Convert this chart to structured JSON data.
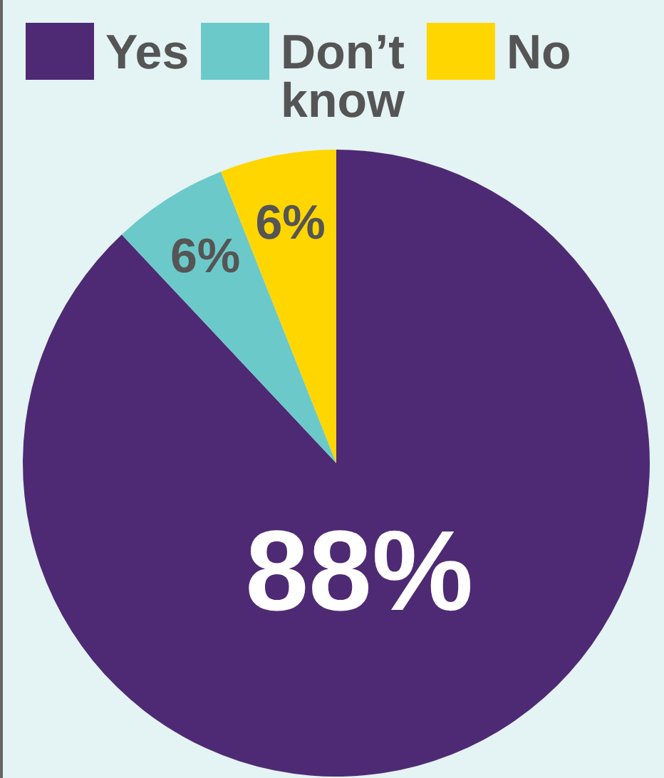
{
  "chart_data": {
    "type": "pie",
    "categories": [
      "Yes",
      "Don’t know",
      "No"
    ],
    "values": [
      88,
      6,
      6
    ],
    "colors": [
      "#4e2a74",
      "#6cc9c9",
      "#ffd600"
    ],
    "value_labels": [
      "88%",
      "6%",
      "6%"
    ],
    "legend": "top"
  }
}
